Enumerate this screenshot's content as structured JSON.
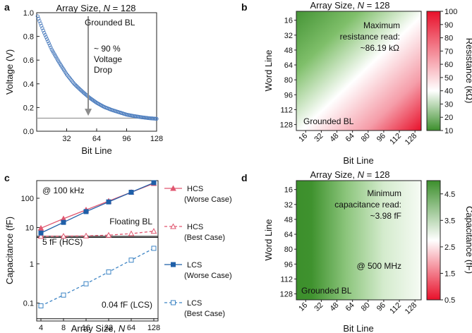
{
  "chart_data": [
    {
      "panel": "a",
      "type": "line",
      "title_prefix": "Array Size, ",
      "title_var": "N",
      "title_suffix": " = 128",
      "xlabel": "Bit Line",
      "ylabel": "Voltage (V)",
      "xlim": [
        0,
        128
      ],
      "ylim": [
        0,
        1.0
      ],
      "xticks": [
        32,
        64,
        96,
        128
      ],
      "yticks": [
        "0.0",
        "0.2",
        "0.4",
        "0.6",
        "0.8",
        "1.0"
      ],
      "yticks_values": [
        0,
        0.2,
        0.4,
        0.6,
        0.8,
        1.0
      ],
      "series": [
        {
          "color": "#4f7fbf",
          "marker": "open-circle",
          "x": [
            1,
            8,
            16,
            24,
            32,
            40,
            48,
            56,
            64,
            72,
            80,
            88,
            96,
            104,
            112,
            120,
            128
          ],
          "y": [
            0.97,
            0.83,
            0.69,
            0.58,
            0.48,
            0.4,
            0.34,
            0.285,
            0.24,
            0.205,
            0.18,
            0.16,
            0.14,
            0.128,
            0.118,
            0.11,
            0.105
          ]
        }
      ],
      "reference_line": 0.11,
      "annotations": [
        "Grounded BL",
        "~ 90 %",
        "Voltage",
        "Drop"
      ],
      "arrow": {
        "x": 55,
        "from": 0.97,
        "to": 0.13
      }
    },
    {
      "panel": "b",
      "type": "heatmap",
      "title_prefix": "Array Size, ",
      "title_var": "N",
      "title_suffix": " = 128",
      "xlabel": "Bit Line",
      "ylabel": "Word Line",
      "xticks": [
        "16",
        "32",
        "48",
        "64",
        "80",
        "96",
        "112",
        "128"
      ],
      "yticks": [
        "16",
        "32",
        "48",
        "64",
        "80",
        "96",
        "112",
        "128"
      ],
      "colorbar_label": "Resistance (kΩ)",
      "colorbar_ticks": [
        "10",
        "20",
        "30",
        "40",
        "50",
        "60",
        "70",
        "80",
        "90",
        "100"
      ],
      "colorbar_range": [
        10,
        100
      ],
      "colormap": [
        "#3c8f2c",
        "#ffffff",
        "#e8102a"
      ],
      "annotations": [
        "Maximum",
        "resistance read:",
        "~86.19 kΩ",
        "Grounded BL"
      ]
    },
    {
      "panel": "c",
      "type": "line",
      "xlabel_prefix": "Array Size, ",
      "xlabel_var": "N",
      "ylabel": "Capacitance (fF)",
      "x": [
        4,
        8,
        16,
        32,
        64,
        128
      ],
      "xticks": [
        "4",
        "8",
        "16",
        "32",
        "64",
        "128"
      ],
      "yscale": "log",
      "upper_ylim": [
        5,
        400
      ],
      "lower_ylim": [
        0.035,
        5
      ],
      "yticks_upper": [
        "10",
        "100"
      ],
      "yticks_lower": [
        "0.1",
        "1"
      ],
      "series": [
        {
          "name_lines": [
            "HCS",
            "(Worse Case)"
          ],
          "color": "#e0566f",
          "marker": "filled-triangle",
          "dash": false,
          "values": [
            9.5,
            20,
            40,
            80,
            160,
            320
          ]
        },
        {
          "name_lines": [
            "HCS",
            "(Best Case)"
          ],
          "color": "#e0566f",
          "marker": "open-triangle",
          "dash": true,
          "values": [
            5.05,
            5.1,
            5.2,
            5.5,
            6.2,
            7.5
          ]
        },
        {
          "name_lines": [
            "LCS",
            "(Worse Case)"
          ],
          "color": "#1f5fa8",
          "marker": "filled-square",
          "dash": false,
          "values": [
            6.5,
            15,
            35,
            75,
            160,
            340
          ]
        },
        {
          "name_lines": [
            "LCS",
            "(Best Case)"
          ],
          "color": "#3d84c4",
          "marker": "open-square",
          "dash": true,
          "values": [
            0.085,
            0.16,
            0.31,
            0.62,
            1.24,
            2.48
          ]
        }
      ],
      "hlines": [
        {
          "value": 5,
          "label": "5 fF (HCS)"
        },
        {
          "value": 0.04,
          "label": "0.04 fF (LCS)"
        }
      ],
      "annotations": [
        "@ 100 kHz",
        "Floating BL"
      ]
    },
    {
      "panel": "d",
      "type": "heatmap",
      "title_prefix": "Array Size, ",
      "title_var": "N",
      "title_suffix": " = 128",
      "xlabel": "Bit Line",
      "ylabel": "Word Line",
      "xticks": [
        "16",
        "32",
        "48",
        "64",
        "80",
        "96",
        "112",
        "128"
      ],
      "yticks": [
        "16",
        "32",
        "48",
        "64",
        "80",
        "96",
        "112",
        "128"
      ],
      "colorbar_label": "Capacitance (fF)",
      "colorbar_ticks": [
        "0.5",
        "1.5",
        "2.5",
        "3.5",
        "4.5"
      ],
      "colorbar_ticks_values": [
        0.5,
        1.5,
        2.5,
        3.5,
        4.5
      ],
      "colorbar_range": [
        0.5,
        5.0
      ],
      "colormap": [
        "#e8102a",
        "#ffffff",
        "#3c8f2c"
      ],
      "annotations": [
        "Minimum",
        "capacitance read:",
        "~3.98 fF",
        "@ 500 MHz",
        "Grounded BL"
      ]
    }
  ]
}
